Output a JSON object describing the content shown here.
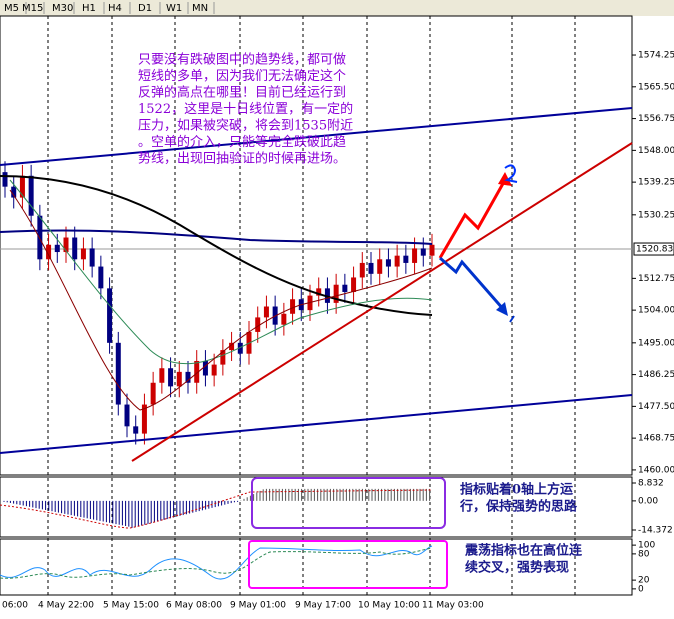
{
  "toolbar": {
    "timeframes": [
      "M5",
      "M15",
      "M30",
      "H1",
      "H4",
      "D1",
      "W1",
      "MN"
    ]
  },
  "chart_data": {
    "type": "candlestick",
    "ylim": [
      1458.6,
      1585.0
    ],
    "yticks": [
      1574.25,
      {
        "value": 1565.5,
        "label": "1565.50"
      },
      1556.75,
      {
        "value": 1548,
        "label": "1548.00"
      },
      1539.25,
      1530.25,
      1512.75,
      {
        "value": 1504,
        "label": "1504.00"
      },
      {
        "value": 1495,
        "label": "1495.00"
      },
      1486.25,
      {
        "value": 1477.5,
        "label": "1477.50"
      },
      1468.75,
      {
        "value": 1460,
        "label": "1460.00"
      }
    ],
    "current_price": 1520.83,
    "x_labels": [
      "06:00",
      "4 May 22:00",
      "5 May 15:00",
      "6 May 08:00",
      "9 May 01:00",
      "9 May 17:00",
      "10 May 10:00",
      "11 May 03:00"
    ],
    "up_color": "#cc0000",
    "down_color": "#000080",
    "candles": {
      "open": [
        1542,
        1538,
        1535,
        1541,
        1530,
        1518,
        1522,
        1520,
        1524,
        1518,
        1521,
        1516,
        1510,
        1495,
        1478,
        1472,
        1470,
        1478,
        1484,
        1488,
        1483,
        1487,
        1484,
        1490,
        1486,
        1489,
        1493,
        1495,
        1492,
        1498,
        1502,
        1505,
        1500,
        1503,
        1507,
        1504,
        1508,
        1510,
        1506,
        1511,
        1509,
        1513,
        1517,
        1514,
        1518,
        1516,
        1519,
        1517,
        1521,
        1519
      ],
      "high": [
        1545,
        1541,
        1544,
        1544,
        1533,
        1525,
        1525,
        1527,
        1527,
        1524,
        1524,
        1519,
        1513,
        1498,
        1481,
        1475,
        1481,
        1487,
        1491,
        1491,
        1490,
        1490,
        1493,
        1493,
        1492,
        1496,
        1498,
        1498,
        1501,
        1505,
        1508,
        1508,
        1506,
        1510,
        1510,
        1511,
        1513,
        1513,
        1514,
        1514,
        1516,
        1520,
        1520,
        1521,
        1521,
        1522,
        1522,
        1524,
        1524,
        1525
      ],
      "low": [
        1535,
        1532,
        1532,
        1527,
        1515,
        1515,
        1517,
        1517,
        1515,
        1515,
        1513,
        1507,
        1492,
        1475,
        1469,
        1467,
        1467,
        1475,
        1481,
        1480,
        1480,
        1481,
        1481,
        1483,
        1483,
        1486,
        1490,
        1489,
        1489,
        1495,
        1499,
        1497,
        1497,
        1500,
        1501,
        1501,
        1505,
        1503,
        1503,
        1506,
        1506,
        1510,
        1511,
        1511,
        1513,
        1513,
        1514,
        1514,
        1516,
        1516
      ],
      "close": [
        1538,
        1535,
        1541,
        1530,
        1518,
        1522,
        1520,
        1524,
        1518,
        1521,
        1516,
        1510,
        1495,
        1478,
        1472,
        1470,
        1478,
        1484,
        1488,
        1483,
        1487,
        1484,
        1490,
        1486,
        1489,
        1493,
        1495,
        1492,
        1498,
        1502,
        1505,
        1500,
        1503,
        1507,
        1504,
        1508,
        1510,
        1506,
        1511,
        1509,
        1513,
        1517,
        1514,
        1518,
        1516,
        1519,
        1517,
        1521,
        1519,
        1522
      ]
    },
    "annotation": [
      "只要没有跌破图中的趋势线，都可做",
      "短线的多单，因为我们无法确定这个",
      "反弹的高点在哪里！目前已经运行到",
      "1522，这里是十日线位置，有一定的",
      "压力，如果被突破，将会到1535附近",
      "。空单的介入，只能等完全跌破此趋",
      "势线，出现回抽验证的时候再进场。"
    ]
  },
  "indicator_1": {
    "ylim": [
      -17.83,
      11.79
    ],
    "yticks": [
      8.832,
      {
        "value": 0,
        "label": "0.00"
      },
      -14.372
    ],
    "note": [
      "指标贴着0轴上方运",
      "行，保持强势的思路"
    ]
  },
  "indicator_2": {
    "ylim": [
      -14,
      114
    ],
    "yticks": [
      100,
      80,
      20,
      0
    ],
    "note": [
      "震荡指标也在高位连",
      "续交叉，强势表现"
    ]
  }
}
